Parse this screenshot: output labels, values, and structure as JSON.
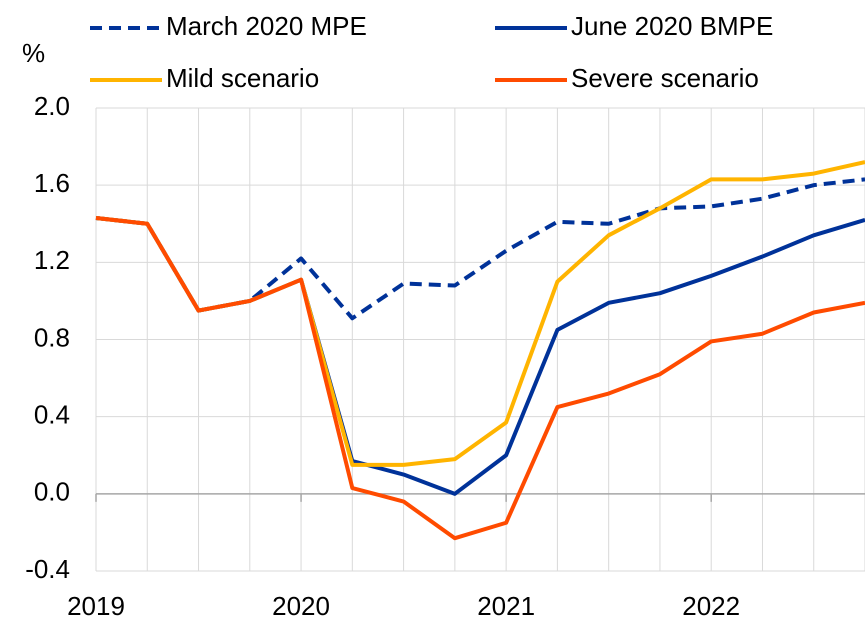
{
  "chart_data": {
    "type": "line",
    "y_label": "%",
    "categories": [
      "2019",
      null,
      null,
      null,
      "2020",
      null,
      null,
      null,
      "2021",
      null,
      null,
      null,
      "2022",
      null,
      null,
      null
    ],
    "series": [
      {
        "name": "March 2020 MPE",
        "color": "#003299",
        "dash": true,
        "values": [
          1.43,
          1.4,
          0.95,
          1.0,
          1.22,
          0.91,
          1.09,
          1.08,
          1.26,
          1.41,
          1.4,
          1.48,
          1.49,
          1.53,
          1.6,
          1.63
        ]
      },
      {
        "name": "June 2020 BMPE",
        "color": "#003299",
        "dash": false,
        "values": [
          1.43,
          1.4,
          0.95,
          1.0,
          1.11,
          0.17,
          0.1,
          0.0,
          0.2,
          0.85,
          0.99,
          1.04,
          1.13,
          1.23,
          1.34,
          1.42
        ]
      },
      {
        "name": "Mild scenario",
        "color": "#ffb400",
        "dash": false,
        "values": [
          1.43,
          1.4,
          0.95,
          1.0,
          1.11,
          0.15,
          0.15,
          0.18,
          0.37,
          1.1,
          1.34,
          1.48,
          1.63,
          1.63,
          1.66,
          1.72
        ]
      },
      {
        "name": "Severe scenario",
        "color": "#ff4b00",
        "dash": false,
        "values": [
          1.43,
          1.4,
          0.95,
          1.0,
          1.11,
          0.03,
          -0.04,
          -0.23,
          -0.15,
          0.45,
          0.52,
          0.62,
          0.79,
          0.83,
          0.94,
          0.99
        ]
      }
    ],
    "ylim": [
      -0.4,
      2.0
    ],
    "yticks": [
      -0.4,
      {
        "value": 0.0,
        "label": "0.0"
      },
      0.4,
      0.8,
      1.2,
      1.6,
      {
        "value": 2.0,
        "label": "2.0"
      }
    ],
    "grid": true
  }
}
